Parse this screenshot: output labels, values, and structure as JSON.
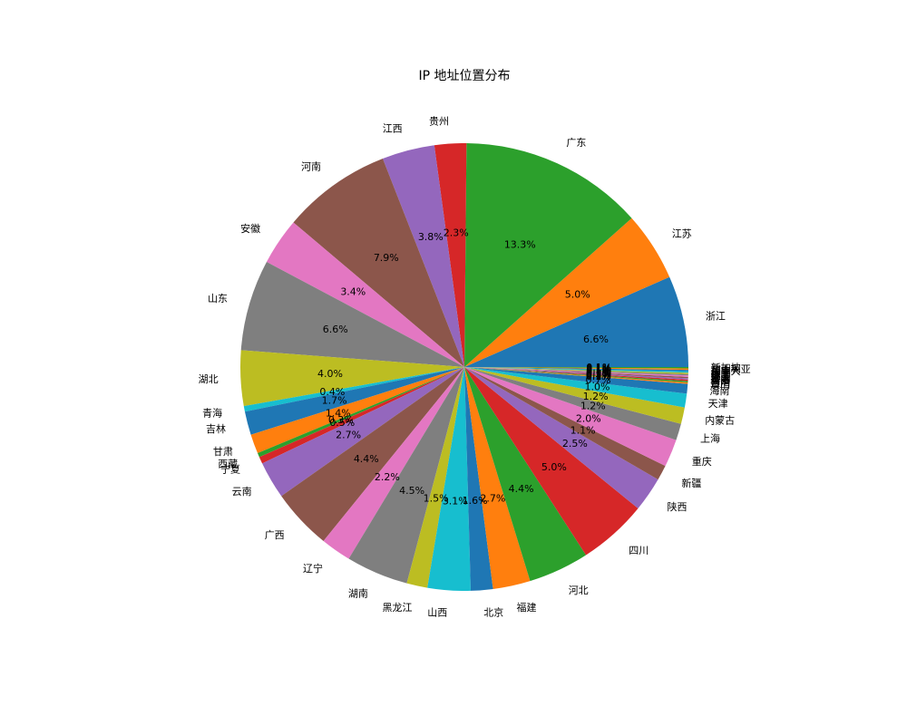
{
  "chart_data": {
    "type": "pie",
    "title": "IP 地址位置分布",
    "start_angle_deg": 0,
    "direction": "counterclockwise",
    "slices": [
      {
        "label": "浙江",
        "value": 6.6,
        "pct_label": "6.6%",
        "color": "#1f77b4"
      },
      {
        "label": "江苏",
        "value": 5.0,
        "pct_label": "5.0%",
        "color": "#ff7f0e"
      },
      {
        "label": "广东",
        "value": 13.3,
        "pct_label": "13.3%",
        "color": "#2ca02c"
      },
      {
        "label": "贵州",
        "value": 2.3,
        "pct_label": "2.3%",
        "color": "#d62728"
      },
      {
        "label": "江西",
        "value": 3.8,
        "pct_label": "3.8%",
        "color": "#9467bd"
      },
      {
        "label": "河南",
        "value": 7.9,
        "pct_label": "7.9%",
        "color": "#8c564b"
      },
      {
        "label": "安徽",
        "value": 3.4,
        "pct_label": "3.4%",
        "color": "#e377c2"
      },
      {
        "label": "山东",
        "value": 6.6,
        "pct_label": "6.6%",
        "color": "#7f7f7f"
      },
      {
        "label": "湖北",
        "value": 4.0,
        "pct_label": "4.0%",
        "color": "#bcbd22"
      },
      {
        "label": "青海",
        "value": 0.4,
        "pct_label": "0.4%",
        "color": "#17becf"
      },
      {
        "label": "吉林",
        "value": 1.7,
        "pct_label": "1.7%",
        "color": "#1f77b4"
      },
      {
        "label": "甘肃",
        "value": 1.4,
        "pct_label": "1.4%",
        "color": "#ff7f0e"
      },
      {
        "label": "西藏",
        "value": 0.3,
        "pct_label": "0.3%",
        "color": "#2ca02c"
      },
      {
        "label": "宁夏",
        "value": 0.5,
        "pct_label": "0.5%",
        "color": "#d62728"
      },
      {
        "label": "云南",
        "value": 2.7,
        "pct_label": "2.7%",
        "color": "#9467bd"
      },
      {
        "label": "广西",
        "value": 4.4,
        "pct_label": "4.4%",
        "color": "#8c564b"
      },
      {
        "label": "辽宁",
        "value": 2.2,
        "pct_label": "2.2%",
        "color": "#e377c2"
      },
      {
        "label": "湖南",
        "value": 4.5,
        "pct_label": "4.5%",
        "color": "#7f7f7f"
      },
      {
        "label": "黑龙江",
        "value": 1.5,
        "pct_label": "1.5%",
        "color": "#bcbd22"
      },
      {
        "label": "山西",
        "value": 3.1,
        "pct_label": "3.1%",
        "color": "#17becf"
      },
      {
        "label": "北京",
        "value": 1.6,
        "pct_label": "1.6%",
        "color": "#1f77b4"
      },
      {
        "label": "福建",
        "value": 2.7,
        "pct_label": "2.7%",
        "color": "#ff7f0e"
      },
      {
        "label": "河北",
        "value": 4.4,
        "pct_label": "4.4%",
        "color": "#2ca02c"
      },
      {
        "label": "四川",
        "value": 5.0,
        "pct_label": "5.0%",
        "color": "#d62728"
      },
      {
        "label": "陕西",
        "value": 2.5,
        "pct_label": "2.5%",
        "color": "#9467bd"
      },
      {
        "label": "新疆",
        "value": 1.1,
        "pct_label": "1.1%",
        "color": "#8c564b"
      },
      {
        "label": "重庆",
        "value": 2.0,
        "pct_label": "2.0%",
        "color": "#e377c2"
      },
      {
        "label": "上海",
        "value": 1.2,
        "pct_label": "1.2%",
        "color": "#7f7f7f"
      },
      {
        "label": "内蒙古",
        "value": 1.2,
        "pct_label": "1.2%",
        "color": "#bcbd22"
      },
      {
        "label": "天津",
        "value": 1.0,
        "pct_label": "1.0%",
        "color": "#17becf"
      },
      {
        "label": "海南",
        "value": 0.7,
        "pct_label": "0.7%",
        "color": "#1f77b4"
      },
      {
        "label": "澳门",
        "value": 0.1,
        "pct_label": "0.1%",
        "color": "#ff7f0e"
      },
      {
        "label": "台湾",
        "value": 0.1,
        "pct_label": "0.1%",
        "color": "#2ca02c"
      },
      {
        "label": "香港",
        "value": 0.1,
        "pct_label": "0.1%",
        "color": "#d62728"
      },
      {
        "label": "美国",
        "value": 0.1,
        "pct_label": "0.1%",
        "color": "#9467bd"
      },
      {
        "label": "日本",
        "value": 0.1,
        "pct_label": "0.1%",
        "color": "#8c564b"
      },
      {
        "label": "韩国",
        "value": 0.1,
        "pct_label": "0.1%",
        "color": "#e377c2"
      },
      {
        "label": "英国",
        "value": 0.1,
        "pct_label": "0.1%",
        "color": "#7f7f7f"
      },
      {
        "label": "德国",
        "value": 0.1,
        "pct_label": "0.1%",
        "color": "#bcbd22"
      },
      {
        "label": "法国",
        "value": 0.1,
        "pct_label": "0.1%",
        "color": "#17becf"
      },
      {
        "label": "加拿大",
        "value": 0.1,
        "pct_label": "0.1%",
        "color": "#1f77b4"
      },
      {
        "label": "澳大利亚",
        "value": 0.1,
        "pct_label": "0.1%",
        "color": "#ff7f0e"
      },
      {
        "label": "新加坡",
        "value": 0.1,
        "pct_label": "0.1%",
        "color": "#2ca02c"
      }
    ]
  }
}
